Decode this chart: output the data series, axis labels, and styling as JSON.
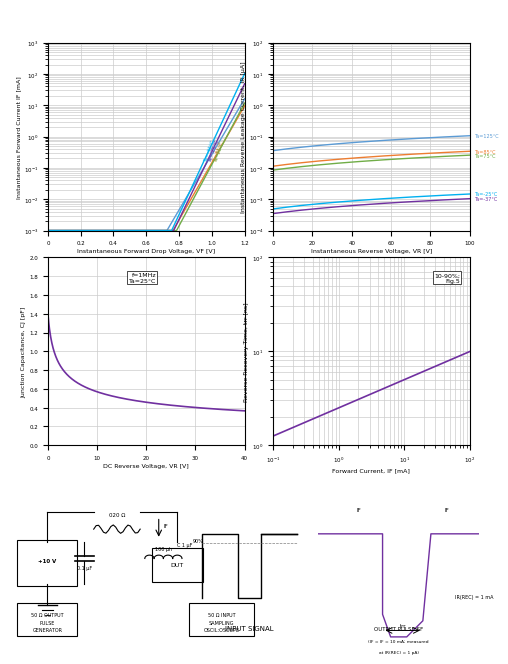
{
  "title_bar_color": "#1a1a1a",
  "bg_color": "#ffffff",
  "grid_color": "#cccccc",
  "plot1": {
    "title": "",
    "xlabel": "Instantaneous Forward Drop Voltage, VF [V]",
    "ylabel": "Instantaneous Forward Current IF [mA]",
    "xlim": [
      0,
      1.2
    ],
    "ylim_log": [
      -3,
      4
    ],
    "xticks": [
      0,
      0.2,
      0.4,
      0.6,
      0.8,
      1.0,
      1.2
    ],
    "yticks_log": [
      0.001,
      0.01,
      0.1,
      1,
      10,
      100,
      1000
    ],
    "curves": [
      {
        "label": "Ta=125°C",
        "color": "#5b9bd5"
      },
      {
        "label": "Ta=85°C",
        "color": "#ed7d31"
      },
      {
        "label": "Ta=25°C",
        "color": "#70ad47"
      },
      {
        "label": "Ta=-25°C",
        "color": "#7030a0"
      },
      {
        "label": "Ta=-40°C",
        "color": "#00b0f0"
      }
    ]
  },
  "plot2": {
    "title": "",
    "xlabel": "Instantaneous Reverse Voltage, VR [V]",
    "ylabel": "Instantaneous Reverse Leakage Current, IR [μA]",
    "xlim": [
      0,
      100
    ],
    "ylim_log": [
      -4,
      2
    ],
    "xticks": [
      0,
      20,
      40,
      60,
      80,
      100
    ],
    "yticks_log": [
      0.0001,
      0.001,
      0.01,
      0.1,
      1,
      10,
      100
    ],
    "curves": [
      {
        "label": "Ta=125°C",
        "color": "#5b9bd5"
      },
      {
        "label": "Ta=85°C",
        "color": "#ed7d31"
      },
      {
        "label": "Ta=75°C",
        "color": "#70ad47"
      },
      {
        "label": "Ta=-37°C",
        "color": "#7030a0"
      },
      {
        "label": "Ta=-25°C",
        "color": "#00b0f0"
      }
    ]
  },
  "plot3": {
    "title": "f=1MHz\nTa=25°C",
    "xlabel": "DC Reverse Voltage, VR [V]",
    "ylabel": "Junction Capacitance, CJ [pF]",
    "xlim": [
      0,
      40
    ],
    "ylim": [
      0,
      2.0
    ],
    "xticks": [
      0,
      10,
      20,
      30,
      40
    ],
    "yticks": [
      0.0,
      0.2,
      0.4,
      0.6,
      0.8,
      1.0,
      1.2,
      1.4,
      1.6,
      1.8,
      2.0
    ],
    "curve_color": "#7030a0"
  },
  "plot4": {
    "title": "10-90%;\nFig.5",
    "xlabel": "Forward Current, IF [mA]",
    "ylabel": "Reverse Recovery Time, trr [ns]",
    "xlim_log": [
      -1,
      2
    ],
    "ylim_log": [
      0,
      2
    ],
    "xticks_log": [
      0.1,
      1,
      10,
      100
    ],
    "yticks_log": [
      1,
      10,
      100
    ],
    "curve_color": "#7030a0"
  }
}
